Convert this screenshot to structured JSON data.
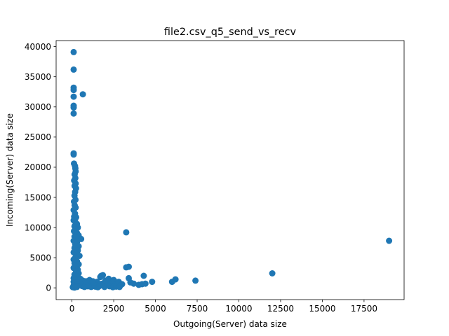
{
  "chart_data": {
    "type": "scatter",
    "title": "file2.csv_q5_send_vs_recv",
    "xlabel": "Outgoing(Server) data size",
    "ylabel": "Incoming(Server) data size",
    "xlim": [
      -950,
      19900
    ],
    "ylim": [
      -1950,
      41000
    ],
    "xticks": [
      0,
      2500,
      5000,
      7500,
      10000,
      12500,
      15000,
      17500
    ],
    "yticks": [
      0,
      5000,
      10000,
      15000,
      20000,
      25000,
      30000,
      35000,
      40000
    ],
    "grid": false,
    "legend": "none",
    "marker_color": "#1f77b4",
    "points": [
      [
        100,
        39100
      ],
      [
        100,
        36200
      ],
      [
        100,
        33200
      ],
      [
        100,
        32800
      ],
      [
        100,
        31700
      ],
      [
        100,
        30200
      ],
      [
        100,
        29900
      ],
      [
        100,
        28900
      ],
      [
        650,
        32100
      ],
      [
        100,
        22300
      ],
      [
        100,
        22100
      ],
      [
        120,
        20600
      ],
      [
        180,
        20200
      ],
      [
        200,
        19800
      ],
      [
        220,
        19300
      ],
      [
        160,
        18800
      ],
      [
        200,
        18200
      ],
      [
        130,
        17800
      ],
      [
        220,
        17300
      ],
      [
        160,
        16900
      ],
      [
        240,
        16500
      ],
      [
        190,
        15900
      ],
      [
        150,
        15300
      ],
      [
        210,
        14600
      ],
      [
        120,
        14300
      ],
      [
        160,
        13700
      ],
      [
        220,
        13300
      ],
      [
        100,
        12900
      ],
      [
        180,
        12300
      ],
      [
        130,
        11800
      ],
      [
        250,
        11700
      ],
      [
        100,
        11200
      ],
      [
        200,
        10900
      ],
      [
        300,
        10600
      ],
      [
        150,
        10200
      ],
      [
        350,
        10000
      ],
      [
        200,
        9700
      ],
      [
        120,
        9400
      ],
      [
        300,
        9100
      ],
      [
        400,
        8700
      ],
      [
        150,
        8500
      ],
      [
        250,
        8300
      ],
      [
        550,
        8100
      ],
      [
        100,
        7800
      ],
      [
        300,
        7600
      ],
      [
        200,
        7200
      ],
      [
        400,
        6900
      ],
      [
        150,
        6600
      ],
      [
        350,
        6200
      ],
      [
        100,
        5900
      ],
      [
        250,
        5600
      ],
      [
        450,
        5300
      ],
      [
        200,
        5000
      ],
      [
        100,
        4700
      ],
      [
        300,
        4400
      ],
      [
        150,
        4100
      ],
      [
        400,
        3900
      ],
      [
        200,
        3600
      ],
      [
        100,
        3300
      ],
      [
        350,
        3000
      ],
      [
        250,
        2700
      ],
      [
        400,
        2400
      ],
      [
        150,
        2200
      ],
      [
        300,
        1900
      ],
      [
        100,
        1600
      ],
      [
        500,
        1500
      ],
      [
        200,
        1300
      ],
      [
        650,
        1200
      ],
      [
        100,
        1000
      ],
      [
        300,
        900
      ],
      [
        150,
        700
      ],
      [
        450,
        600
      ],
      [
        100,
        400
      ],
      [
        250,
        300
      ],
      [
        100,
        200
      ],
      [
        50,
        100
      ],
      [
        150,
        50
      ],
      [
        300,
        150
      ],
      [
        600,
        300
      ],
      [
        700,
        500
      ],
      [
        800,
        250
      ],
      [
        900,
        700
      ],
      [
        1000,
        400
      ],
      [
        1100,
        900
      ],
      [
        1200,
        300
      ],
      [
        1300,
        600
      ],
      [
        1400,
        200
      ],
      [
        1500,
        1000
      ],
      [
        1600,
        500
      ],
      [
        1700,
        1800
      ],
      [
        1750,
        2000
      ],
      [
        1800,
        700
      ],
      [
        1850,
        2100
      ],
      [
        1900,
        350
      ],
      [
        2000,
        1200
      ],
      [
        2100,
        600
      ],
      [
        2200,
        1500
      ],
      [
        2300,
        300
      ],
      [
        2400,
        900
      ],
      [
        2500,
        1300
      ],
      [
        2600,
        450
      ],
      [
        2700,
        700
      ],
      [
        2800,
        1000
      ],
      [
        2900,
        400
      ],
      [
        3000,
        600
      ],
      [
        750,
        150
      ],
      [
        950,
        250
      ],
      [
        1150,
        150
      ],
      [
        1350,
        450
      ],
      [
        1550,
        100
      ],
      [
        1650,
        300
      ],
      [
        1950,
        150
      ],
      [
        2250,
        250
      ],
      [
        2450,
        100
      ],
      [
        2650,
        200
      ],
      [
        2850,
        150
      ],
      [
        850,
        1100
      ],
      [
        1050,
        1300
      ],
      [
        1250,
        1100
      ],
      [
        3250,
        9200
      ],
      [
        3250,
        3400
      ],
      [
        3400,
        3500
      ],
      [
        3400,
        1600
      ],
      [
        3500,
        900
      ],
      [
        3700,
        700
      ],
      [
        4000,
        500
      ],
      [
        4200,
        600
      ],
      [
        4300,
        2000
      ],
      [
        4400,
        700
      ],
      [
        4800,
        1000
      ],
      [
        6000,
        1000
      ],
      [
        6200,
        1400
      ],
      [
        7400,
        1200
      ],
      [
        12000,
        2400
      ],
      [
        19000,
        7800
      ]
    ]
  }
}
